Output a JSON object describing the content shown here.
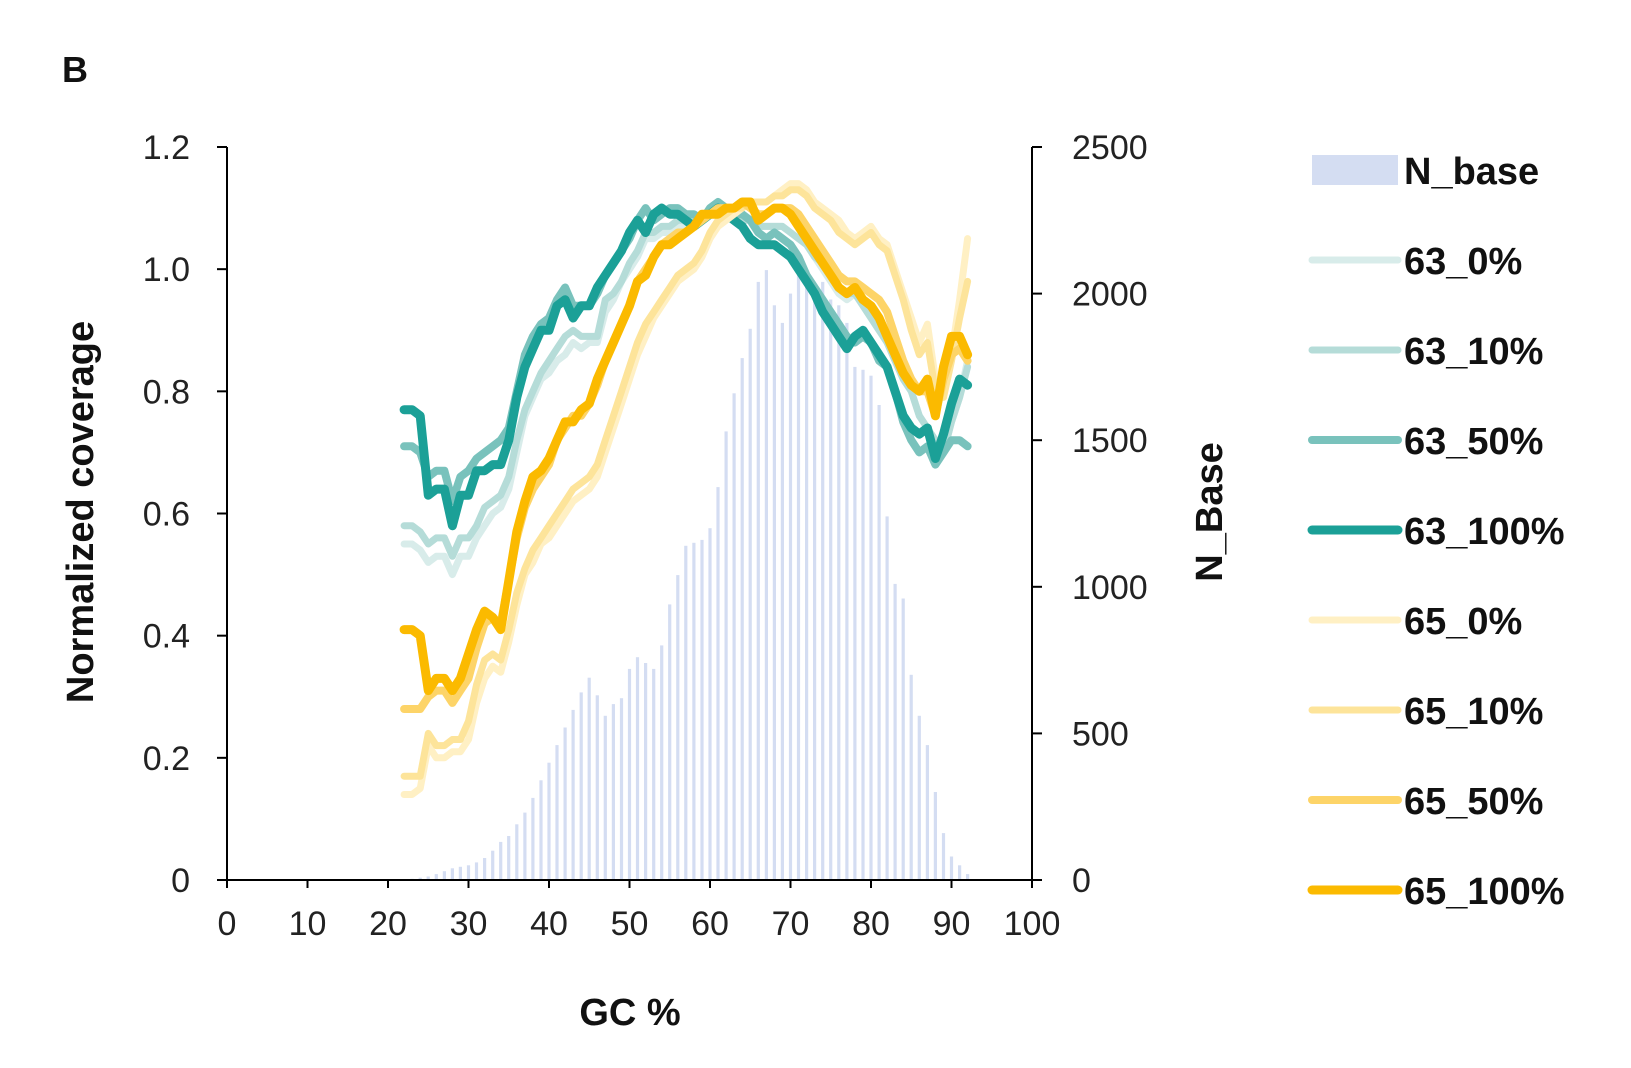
{
  "panel_label": "B",
  "chart_data": {
    "type": "line",
    "title": "",
    "xlabel": "GC %",
    "ylabel": "Normalized coverage",
    "y2label": "N_Base",
    "xlim": [
      0,
      100
    ],
    "ylim": [
      0,
      1.2
    ],
    "y2lim": [
      0,
      2500
    ],
    "xticks": [
      "0",
      "10",
      "20",
      "30",
      "40",
      "50",
      "60",
      "70",
      "80",
      "90",
      "100"
    ],
    "yticks": [
      "0",
      "0.2",
      "0.4",
      "0.6",
      "0.8",
      "1.0",
      "1.2"
    ],
    "y2ticks": [
      "0",
      "500",
      "1000",
      "1500",
      "2000",
      "2500"
    ],
    "grid": false,
    "legend_position": "right",
    "bars": {
      "name": "N_base",
      "color": "#d4ddf2",
      "x": [
        22,
        23,
        24,
        25,
        26,
        27,
        28,
        29,
        30,
        31,
        32,
        33,
        34,
        35,
        36,
        37,
        38,
        39,
        40,
        41,
        42,
        43,
        44,
        45,
        46,
        47,
        48,
        49,
        50,
        51,
        52,
        53,
        54,
        55,
        56,
        57,
        58,
        59,
        60,
        61,
        62,
        63,
        64,
        65,
        66,
        67,
        68,
        69,
        70,
        71,
        72,
        73,
        74,
        75,
        76,
        77,
        78,
        79,
        80,
        81,
        82,
        83,
        84,
        85,
        86,
        87,
        88,
        89,
        90,
        91,
        92
      ],
      "values": [
        2,
        4,
        8,
        12,
        20,
        30,
        40,
        45,
        50,
        60,
        75,
        100,
        130,
        150,
        190,
        230,
        280,
        340,
        400,
        460,
        520,
        580,
        640,
        690,
        630,
        560,
        600,
        620,
        720,
        760,
        740,
        720,
        800,
        940,
        1040,
        1140,
        1150,
        1160,
        1200,
        1340,
        1530,
        1660,
        1780,
        1880,
        2040,
        2080,
        1960,
        1900,
        2000,
        2080,
        2050,
        2030,
        2040,
        1980,
        1960,
        1900,
        1750,
        1740,
        1720,
        1620,
        1240,
        1010,
        960,
        700,
        560,
        460,
        300,
        160,
        80,
        50,
        20
      ]
    },
    "x": [
      22,
      23,
      24,
      25,
      26,
      27,
      28,
      29,
      30,
      31,
      32,
      33,
      34,
      35,
      36,
      37,
      38,
      39,
      40,
      41,
      42,
      43,
      44,
      45,
      46,
      47,
      48,
      49,
      50,
      51,
      52,
      53,
      54,
      55,
      56,
      57,
      58,
      59,
      60,
      61,
      62,
      63,
      64,
      65,
      66,
      67,
      68,
      69,
      70,
      71,
      72,
      73,
      74,
      75,
      76,
      77,
      78,
      79,
      80,
      81,
      82,
      83,
      84,
      85,
      86,
      87,
      88,
      89,
      90,
      91,
      92
    ],
    "series": [
      {
        "name": "63_0%",
        "color": "#d8ecea",
        "width": 7,
        "values": [
          0.55,
          0.55,
          0.54,
          0.52,
          0.53,
          0.53,
          0.5,
          0.53,
          0.53,
          0.56,
          0.58,
          0.6,
          0.61,
          0.64,
          0.7,
          0.76,
          0.79,
          0.82,
          0.83,
          0.85,
          0.86,
          0.88,
          0.87,
          0.88,
          0.88,
          0.93,
          0.95,
          0.98,
          1.0,
          1.02,
          1.05,
          1.05,
          1.06,
          1.06,
          1.07,
          1.07,
          1.08,
          1.09,
          1.09,
          1.09,
          1.09,
          1.08,
          1.08,
          1.08,
          1.07,
          1.07,
          1.07,
          1.07,
          1.06,
          1.05,
          1.04,
          1.02,
          1.0,
          0.98,
          0.96,
          0.95,
          0.96,
          0.94,
          0.92,
          0.9,
          0.88,
          0.85,
          0.82,
          0.8,
          0.76,
          0.74,
          0.72,
          0.7,
          0.75,
          0.79,
          0.85
        ]
      },
      {
        "name": "63_10%",
        "color": "#b5dcd8",
        "width": 7,
        "values": [
          0.58,
          0.58,
          0.57,
          0.55,
          0.56,
          0.56,
          0.53,
          0.56,
          0.56,
          0.58,
          0.61,
          0.62,
          0.63,
          0.66,
          0.72,
          0.77,
          0.8,
          0.83,
          0.85,
          0.87,
          0.89,
          0.9,
          0.89,
          0.89,
          0.89,
          0.95,
          0.96,
          0.98,
          1.01,
          1.03,
          1.06,
          1.06,
          1.07,
          1.07,
          1.08,
          1.08,
          1.08,
          1.09,
          1.09,
          1.09,
          1.09,
          1.08,
          1.08,
          1.08,
          1.07,
          1.07,
          1.07,
          1.07,
          1.06,
          1.05,
          1.04,
          1.02,
          1.01,
          0.99,
          0.97,
          0.96,
          0.96,
          0.94,
          0.92,
          0.9,
          0.88,
          0.85,
          0.82,
          0.8,
          0.76,
          0.74,
          0.72,
          0.7,
          0.75,
          0.79,
          0.84
        ]
      },
      {
        "name": "63_50%",
        "color": "#79c2bc",
        "width": 8,
        "values": [
          0.71,
          0.71,
          0.7,
          0.66,
          0.67,
          0.67,
          0.62,
          0.66,
          0.67,
          0.69,
          0.7,
          0.71,
          0.72,
          0.74,
          0.8,
          0.86,
          0.89,
          0.91,
          0.92,
          0.95,
          0.97,
          0.94,
          0.94,
          0.94,
          0.96,
          0.99,
          1.01,
          1.03,
          1.05,
          1.08,
          1.1,
          1.08,
          1.09,
          1.1,
          1.1,
          1.09,
          1.09,
          1.08,
          1.1,
          1.11,
          1.1,
          1.09,
          1.09,
          1.08,
          1.06,
          1.05,
          1.06,
          1.05,
          1.04,
          1.02,
          0.99,
          0.97,
          0.95,
          0.93,
          0.91,
          0.89,
          0.88,
          0.89,
          0.88,
          0.85,
          0.84,
          0.8,
          0.75,
          0.72,
          0.7,
          0.71,
          0.68,
          0.7,
          0.72,
          0.72,
          0.71
        ]
      },
      {
        "name": "63_100%",
        "color": "#1ba097",
        "width": 9,
        "values": [
          0.77,
          0.77,
          0.76,
          0.63,
          0.64,
          0.64,
          0.58,
          0.63,
          0.63,
          0.67,
          0.67,
          0.68,
          0.68,
          0.72,
          0.79,
          0.84,
          0.87,
          0.9,
          0.9,
          0.94,
          0.95,
          0.92,
          0.94,
          0.94,
          0.97,
          0.99,
          1.01,
          1.03,
          1.06,
          1.08,
          1.06,
          1.09,
          1.1,
          1.09,
          1.09,
          1.08,
          1.07,
          1.08,
          1.09,
          1.1,
          1.09,
          1.08,
          1.07,
          1.05,
          1.04,
          1.04,
          1.04,
          1.03,
          1.02,
          1.0,
          0.98,
          0.96,
          0.93,
          0.91,
          0.89,
          0.87,
          0.89,
          0.9,
          0.88,
          0.86,
          0.84,
          0.8,
          0.76,
          0.74,
          0.73,
          0.74,
          0.69,
          0.73,
          0.78,
          0.82,
          0.81
        ]
      },
      {
        "name": "65_0%",
        "color": "#fff0c4",
        "width": 7,
        "values": [
          0.14,
          0.14,
          0.15,
          0.22,
          0.2,
          0.2,
          0.21,
          0.21,
          0.23,
          0.29,
          0.33,
          0.35,
          0.34,
          0.39,
          0.45,
          0.5,
          0.52,
          0.55,
          0.56,
          0.58,
          0.6,
          0.62,
          0.63,
          0.64,
          0.66,
          0.7,
          0.74,
          0.78,
          0.82,
          0.86,
          0.89,
          0.92,
          0.94,
          0.96,
          0.98,
          0.99,
          1.0,
          1.02,
          1.05,
          1.07,
          1.08,
          1.09,
          1.1,
          1.11,
          1.11,
          1.11,
          1.12,
          1.13,
          1.14,
          1.14,
          1.13,
          1.11,
          1.1,
          1.09,
          1.08,
          1.06,
          1.05,
          1.06,
          1.07,
          1.05,
          1.04,
          1.0,
          0.96,
          0.92,
          0.88,
          0.91,
          0.82,
          0.8,
          0.86,
          0.95,
          1.05
        ]
      },
      {
        "name": "65_10%",
        "color": "#fde49a",
        "width": 7,
        "values": [
          0.17,
          0.17,
          0.17,
          0.24,
          0.22,
          0.22,
          0.23,
          0.23,
          0.26,
          0.32,
          0.36,
          0.37,
          0.36,
          0.41,
          0.47,
          0.51,
          0.54,
          0.56,
          0.58,
          0.6,
          0.62,
          0.64,
          0.65,
          0.66,
          0.68,
          0.72,
          0.76,
          0.8,
          0.84,
          0.88,
          0.91,
          0.93,
          0.95,
          0.97,
          0.99,
          1.0,
          1.01,
          1.03,
          1.06,
          1.08,
          1.09,
          1.1,
          1.1,
          1.11,
          1.11,
          1.11,
          1.12,
          1.12,
          1.13,
          1.13,
          1.12,
          1.1,
          1.09,
          1.08,
          1.06,
          1.05,
          1.04,
          1.05,
          1.06,
          1.04,
          1.03,
          0.99,
          0.95,
          0.9,
          0.86,
          0.88,
          0.8,
          0.79,
          0.85,
          0.92,
          0.98
        ]
      },
      {
        "name": "65_50%",
        "color": "#fdd468",
        "width": 8,
        "values": [
          0.28,
          0.28,
          0.28,
          0.3,
          0.31,
          0.31,
          0.29,
          0.31,
          0.33,
          0.38,
          0.42,
          0.43,
          0.42,
          0.49,
          0.56,
          0.61,
          0.64,
          0.66,
          0.68,
          0.72,
          0.74,
          0.76,
          0.76,
          0.78,
          0.81,
          0.85,
          0.88,
          0.91,
          0.94,
          0.98,
          1.0,
          1.02,
          1.04,
          1.05,
          1.06,
          1.06,
          1.07,
          1.08,
          1.09,
          1.1,
          1.1,
          1.1,
          1.11,
          1.1,
          1.09,
          1.09,
          1.1,
          1.1,
          1.1,
          1.09,
          1.07,
          1.05,
          1.03,
          1.01,
          0.99,
          0.98,
          0.98,
          0.97,
          0.96,
          0.95,
          0.93,
          0.89,
          0.85,
          0.82,
          0.8,
          0.8,
          0.76,
          0.82,
          0.86,
          0.87,
          0.85
        ]
      },
      {
        "name": "65_100%",
        "color": "#fbba00",
        "width": 9,
        "values": [
          0.41,
          0.41,
          0.4,
          0.31,
          0.33,
          0.33,
          0.31,
          0.33,
          0.37,
          0.41,
          0.44,
          0.43,
          0.41,
          0.49,
          0.57,
          0.62,
          0.66,
          0.67,
          0.69,
          0.72,
          0.75,
          0.75,
          0.77,
          0.78,
          0.82,
          0.85,
          0.88,
          0.91,
          0.94,
          0.98,
          0.99,
          1.02,
          1.04,
          1.04,
          1.05,
          1.06,
          1.07,
          1.09,
          1.09,
          1.09,
          1.1,
          1.1,
          1.11,
          1.11,
          1.08,
          1.09,
          1.1,
          1.1,
          1.09,
          1.07,
          1.05,
          1.03,
          1.01,
          0.99,
          0.97,
          0.96,
          0.97,
          0.95,
          0.94,
          0.92,
          0.89,
          0.86,
          0.83,
          0.81,
          0.8,
          0.82,
          0.76,
          0.84,
          0.89,
          0.89,
          0.86
        ]
      }
    ]
  }
}
